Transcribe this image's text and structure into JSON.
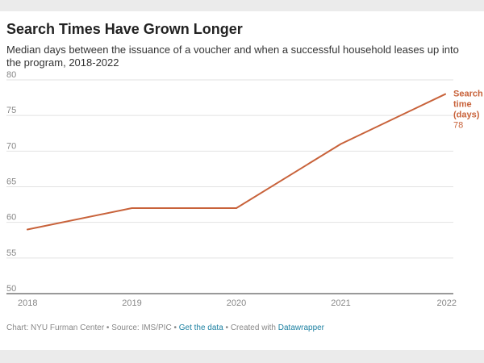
{
  "colors": {
    "line": "#c8623a",
    "grid": "#e2e2e2",
    "axis": "#333333",
    "tick_text": "#888888",
    "link": "#1d81a2"
  },
  "chart_data": {
    "type": "line",
    "title": "Search Times Have Grown Longer",
    "subtitle": "Median days between the issuance of a voucher and when a successful household leases up into the program, 2018-2022",
    "x": [
      "2018",
      "2019",
      "2020",
      "2021",
      "2022"
    ],
    "series": [
      {
        "name": "Search time (days)",
        "values": [
          59,
          62,
          62,
          71,
          78
        ]
      }
    ],
    "ylim": [
      50,
      80
    ],
    "yticks": [
      "50",
      "55",
      "60",
      "65",
      "70",
      "75",
      "80"
    ],
    "grid": true,
    "end_label": {
      "line1": "Search",
      "line2": "time",
      "line3": "(days)",
      "value": "78"
    }
  },
  "footer": {
    "credit": "Chart: NYU Furman Center • Source: IMS/PIC • ",
    "get_data": "Get the data",
    "created": " • Created with ",
    "datawrapper": "Datawrapper"
  }
}
